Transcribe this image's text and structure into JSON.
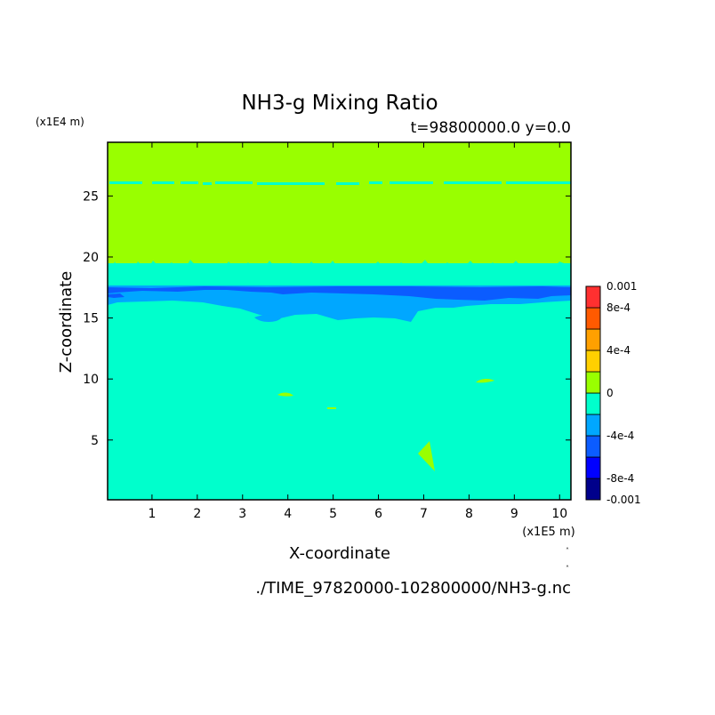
{
  "chart_data": {
    "type": "heatmap",
    "title": "NH3-g Mixing Ratio",
    "subtitle": "t=98800000.0 y=0.0",
    "xlabel": "X-coordinate",
    "ylabel": "Z-coordinate",
    "x_unit": "(x1E5 m)",
    "y_unit": "(x1E4 m)",
    "source": "./TIME_97820000-102800000/NH3-g.nc",
    "xlim": [
      0.02,
      10.25
    ],
    "ylim": [
      0.1,
      29.4
    ],
    "xticks": [
      1,
      2,
      3,
      4,
      5,
      6,
      7,
      8,
      9,
      10
    ],
    "yticks": [
      5,
      10,
      15,
      20,
      25
    ],
    "colorbar": {
      "range": [
        -0.001,
        0.001
      ],
      "levels": [
        -0.001,
        -0.0008,
        -0.0006,
        -0.0004,
        -0.0002,
        0,
        0.0002,
        0.0004,
        0.0006,
        0.0008,
        0.001
      ],
      "colors": [
        "#00008b",
        "#0000ff",
        "#0b5cff",
        "#00a7ff",
        "#00ffcc",
        "#99ff00",
        "#ffd000",
        "#ffa000",
        "#ff5a00",
        "#ff3030"
      ],
      "labels": [
        {
          "value": 0.001,
          "text": "0.001"
        },
        {
          "value": 0.0008,
          "text": "8e-4"
        },
        {
          "value": 0.0004,
          "text": "4e-4"
        },
        {
          "value": 0,
          "text": "0"
        },
        {
          "value": -0.0004,
          "text": "-4e-4"
        },
        {
          "value": -0.0008,
          "text": "-8e-4"
        },
        {
          "value": -0.001,
          "text": "-0.001"
        }
      ]
    },
    "regions": [
      {
        "name": "upper-layer",
        "z_range": [
          20,
          29.4
        ],
        "level": "0 to 2e-4",
        "color": "#99ff00"
      },
      {
        "name": "thin-band",
        "z": 26.5,
        "level": "-2e-4 to 0",
        "color": "#00ffcc"
      },
      {
        "name": "transition-layer",
        "z_range": [
          18,
          20
        ],
        "level": "-2e-4 to 2e-4",
        "colors": [
          "#99ff00",
          "#00ffcc"
        ]
      },
      {
        "name": "blue-layer",
        "z_range": [
          16.5,
          18
        ],
        "level": "-4e-4 to -2e-4",
        "color": "#00a7ff"
      },
      {
        "name": "dark-blue-core",
        "z_range": [
          17.2,
          17.8
        ],
        "level": "-6e-4 to -4e-4",
        "color": "#0b5cff"
      },
      {
        "name": "lower-region",
        "z_range": [
          0.1,
          16.5
        ],
        "level": "-2e-4 to 0",
        "color": "#00ffcc"
      }
    ],
    "colors": {
      "background": "#ffffff",
      "axis": "#000000"
    }
  }
}
